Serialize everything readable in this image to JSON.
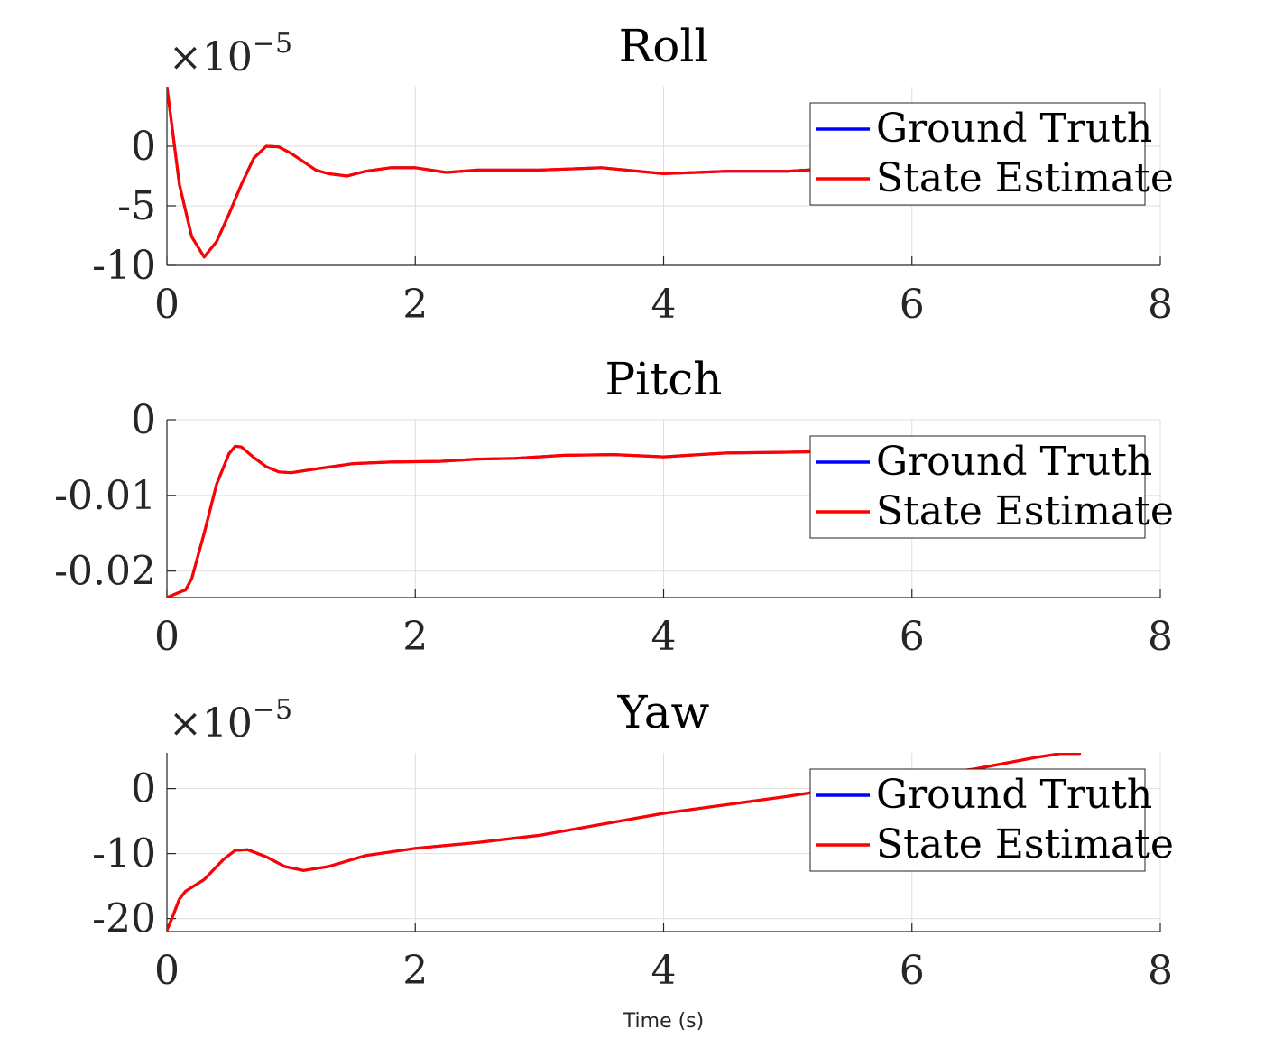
{
  "chart_data": [
    {
      "type": "line",
      "title": "Roll",
      "xlabel": "",
      "ylabel": "",
      "multiplier": {
        "base": "×10",
        "exp": "−5"
      },
      "xlim": [
        0,
        8
      ],
      "ylim": [
        -10,
        5
      ],
      "xticks": [
        0,
        2,
        4,
        6,
        8
      ],
      "xtick_labels": [
        "0",
        "2",
        "4",
        "6",
        "8"
      ],
      "yticks": [
        -10,
        -5,
        0
      ],
      "ytick_labels": [
        "-10",
        "-5",
        "0"
      ],
      "grid": true,
      "legend": {
        "location": "top-right",
        "entries": [
          "Ground Truth",
          "State Estimate"
        ]
      },
      "series": [
        {
          "name": "Ground Truth",
          "color": "#0000ff",
          "x": [
            0,
            0.1,
            0.2,
            0.3,
            0.4,
            0.5,
            0.6,
            0.7,
            0.8,
            0.9,
            1.0,
            1.1,
            1.2,
            1.3,
            1.45,
            1.6,
            1.8,
            2.0,
            2.25,
            2.5,
            3.0,
            3.5,
            4.0,
            4.5,
            5.0,
            5.3,
            5.5
          ],
          "y": [
            5,
            -3.2,
            -7.6,
            -9.3,
            -8.0,
            -5.7,
            -3.2,
            -1.0,
            0.0,
            -0.05,
            -0.6,
            -1.3,
            -2.0,
            -2.3,
            -2.5,
            -2.1,
            -1.8,
            -1.8,
            -2.2,
            -2.0,
            -2.0,
            -1.8,
            -2.3,
            -2.1,
            -2.1,
            -1.9,
            -1.6
          ]
        },
        {
          "name": "State Estimate",
          "color": "#ff0000",
          "x": [
            0,
            0.1,
            0.2,
            0.3,
            0.4,
            0.5,
            0.6,
            0.7,
            0.8,
            0.9,
            1.0,
            1.1,
            1.2,
            1.3,
            1.45,
            1.6,
            1.8,
            2.0,
            2.25,
            2.5,
            3.0,
            3.5,
            4.0,
            4.5,
            5.0,
            5.3,
            5.5
          ],
          "y": [
            5,
            -3.2,
            -7.6,
            -9.3,
            -8.0,
            -5.7,
            -3.2,
            -1.0,
            0.0,
            -0.05,
            -0.6,
            -1.3,
            -2.0,
            -2.3,
            -2.5,
            -2.1,
            -1.8,
            -1.8,
            -2.2,
            -2.0,
            -2.0,
            -1.8,
            -2.3,
            -2.1,
            -2.1,
            -1.9,
            -1.6
          ]
        }
      ]
    },
    {
      "type": "line",
      "title": "Pitch",
      "xlabel": "",
      "ylabel": "",
      "multiplier": null,
      "xlim": [
        0,
        8
      ],
      "ylim": [
        -0.0235,
        0
      ],
      "xticks": [
        0,
        2,
        4,
        6,
        8
      ],
      "xtick_labels": [
        "0",
        "2",
        "4",
        "6",
        "8"
      ],
      "yticks": [
        -0.02,
        -0.01,
        0
      ],
      "ytick_labels": [
        "-0.02",
        "-0.01",
        "0"
      ],
      "grid": true,
      "legend": {
        "location": "top-right",
        "entries": [
          "Ground Truth",
          "State Estimate"
        ]
      },
      "series": [
        {
          "name": "Ground Truth",
          "color": "#0000ff",
          "x": [
            0,
            0.1,
            0.15,
            0.2,
            0.3,
            0.4,
            0.5,
            0.55,
            0.6,
            0.7,
            0.8,
            0.9,
            1.0,
            1.2,
            1.5,
            1.8,
            2.2,
            2.5,
            2.8,
            3.2,
            3.6,
            4.0,
            4.2,
            4.5,
            5.0,
            5.3
          ],
          "y": [
            -0.0235,
            -0.0228,
            -0.0225,
            -0.021,
            -0.015,
            -0.0085,
            -0.0045,
            -0.0035,
            -0.0036,
            -0.005,
            -0.0062,
            -0.0069,
            -0.007,
            -0.0065,
            -0.0058,
            -0.0056,
            -0.0055,
            -0.0052,
            -0.0051,
            -0.0047,
            -0.0046,
            -0.0049,
            -0.0047,
            -0.0044,
            -0.0043,
            -0.0042
          ]
        },
        {
          "name": "State Estimate",
          "color": "#ff0000",
          "x": [
            0,
            0.1,
            0.15,
            0.2,
            0.3,
            0.4,
            0.5,
            0.55,
            0.6,
            0.7,
            0.8,
            0.9,
            1.0,
            1.2,
            1.5,
            1.8,
            2.2,
            2.5,
            2.8,
            3.2,
            3.6,
            4.0,
            4.2,
            4.5,
            5.0,
            5.3
          ],
          "y": [
            -0.0235,
            -0.0228,
            -0.0225,
            -0.021,
            -0.015,
            -0.0085,
            -0.0045,
            -0.0035,
            -0.0036,
            -0.005,
            -0.0062,
            -0.0069,
            -0.007,
            -0.0065,
            -0.0058,
            -0.0056,
            -0.0055,
            -0.0052,
            -0.0051,
            -0.0047,
            -0.0046,
            -0.0049,
            -0.0047,
            -0.0044,
            -0.0043,
            -0.0042
          ]
        }
      ]
    },
    {
      "type": "line",
      "title": "Yaw",
      "xlabel": "Time (s)",
      "ylabel": "",
      "multiplier": {
        "base": "×10",
        "exp": "−5"
      },
      "xlim": [
        0,
        8
      ],
      "ylim": [
        -22,
        5.5
      ],
      "xticks": [
        0,
        2,
        4,
        6,
        8
      ],
      "xtick_labels": [
        "0",
        "2",
        "4",
        "6",
        "8"
      ],
      "yticks": [
        -20,
        -10,
        0
      ],
      "ytick_labels": [
        "-20",
        "-10",
        "0"
      ],
      "grid": true,
      "legend": {
        "location": "top-right",
        "entries": [
          "Ground Truth",
          "State Estimate"
        ]
      },
      "series": [
        {
          "name": "Ground Truth",
          "color": "#0000ff",
          "x": [
            0,
            0.05,
            0.1,
            0.15,
            0.3,
            0.45,
            0.55,
            0.65,
            0.8,
            0.95,
            1.1,
            1.3,
            1.6,
            2.0,
            2.5,
            3.0,
            3.5,
            4.0,
            4.5,
            5.0,
            5.5,
            6.0,
            6.5,
            7.0,
            7.2,
            7.35
          ],
          "y": [
            -21.8,
            -19.5,
            -17.0,
            -15.8,
            -14.0,
            -11.0,
            -9.5,
            -9.4,
            -10.5,
            -12.0,
            -12.6,
            -12.0,
            -10.3,
            -9.2,
            -8.3,
            -7.2,
            -5.5,
            -3.8,
            -2.5,
            -1.2,
            0.3,
            1.8,
            3.0,
            4.8,
            5.4,
            5.4
          ]
        },
        {
          "name": "State Estimate",
          "color": "#ff0000",
          "x": [
            0,
            0.05,
            0.1,
            0.15,
            0.3,
            0.45,
            0.55,
            0.65,
            0.8,
            0.95,
            1.1,
            1.3,
            1.6,
            2.0,
            2.5,
            3.0,
            3.5,
            4.0,
            4.5,
            5.0,
            5.5,
            6.0,
            6.5,
            7.0,
            7.2,
            7.35
          ],
          "y": [
            -21.8,
            -19.5,
            -17.0,
            -15.8,
            -14.0,
            -11.0,
            -9.5,
            -9.4,
            -10.5,
            -12.0,
            -12.6,
            -12.0,
            -10.3,
            -9.2,
            -8.3,
            -7.2,
            -5.5,
            -3.8,
            -2.5,
            -1.2,
            0.3,
            1.8,
            3.0,
            4.8,
            5.4,
            5.4
          ]
        }
      ]
    }
  ]
}
